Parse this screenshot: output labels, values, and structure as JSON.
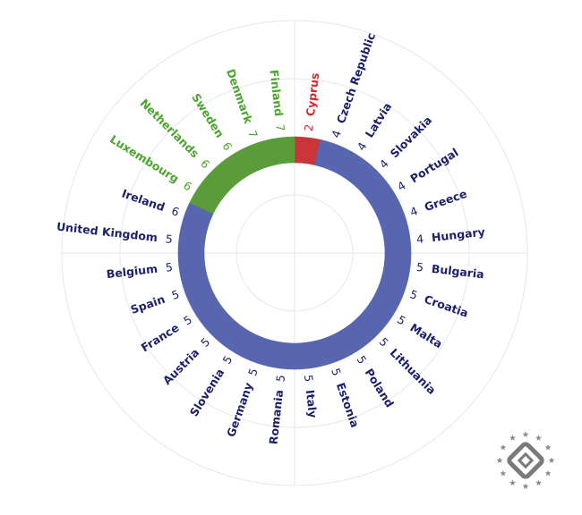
{
  "chart_data": {
    "type": "radial-bar",
    "title": "",
    "start_angle_deg": 0,
    "categories": [
      "Cyprus",
      "Czech Republic",
      "Latvia",
      "Slovakia",
      "Portugal",
      "Greece",
      "Hungary",
      "Bulgaria",
      "Croatia",
      "Malta",
      "Lithuania",
      "Poland",
      "Estonia",
      "Italy",
      "Romania",
      "Germany",
      "Slovenia",
      "Austria",
      "France",
      "Spain",
      "Belgium",
      "United Kingdom",
      "Ireland",
      "Luxembourg",
      "Netherlands",
      "Sweden",
      "Denmark",
      "Finland"
    ],
    "values": [
      2,
      4,
      4,
      4,
      4,
      4,
      4,
      5,
      5,
      5,
      5,
      5,
      5,
      5,
      5,
      5,
      5,
      5,
      5,
      5,
      5,
      5,
      6,
      6,
      6,
      6,
      7,
      7
    ],
    "groups": [
      "red",
      "blue",
      "blue",
      "blue",
      "blue",
      "blue",
      "blue",
      "blue",
      "blue",
      "blue",
      "blue",
      "blue",
      "blue",
      "blue",
      "blue",
      "blue",
      "blue",
      "blue",
      "blue",
      "blue",
      "blue",
      "blue",
      "blue",
      "green",
      "green",
      "green",
      "green",
      "green"
    ],
    "colors": {
      "red": "#c8353a",
      "blue": "#5866b0",
      "green": "#5a9c3a",
      "label_red": "#d42a2a",
      "label_blue": "#1c1f6b",
      "label_green": "#4aa52c",
      "grid": "#e6e6ee"
    },
    "grid": true
  }
}
